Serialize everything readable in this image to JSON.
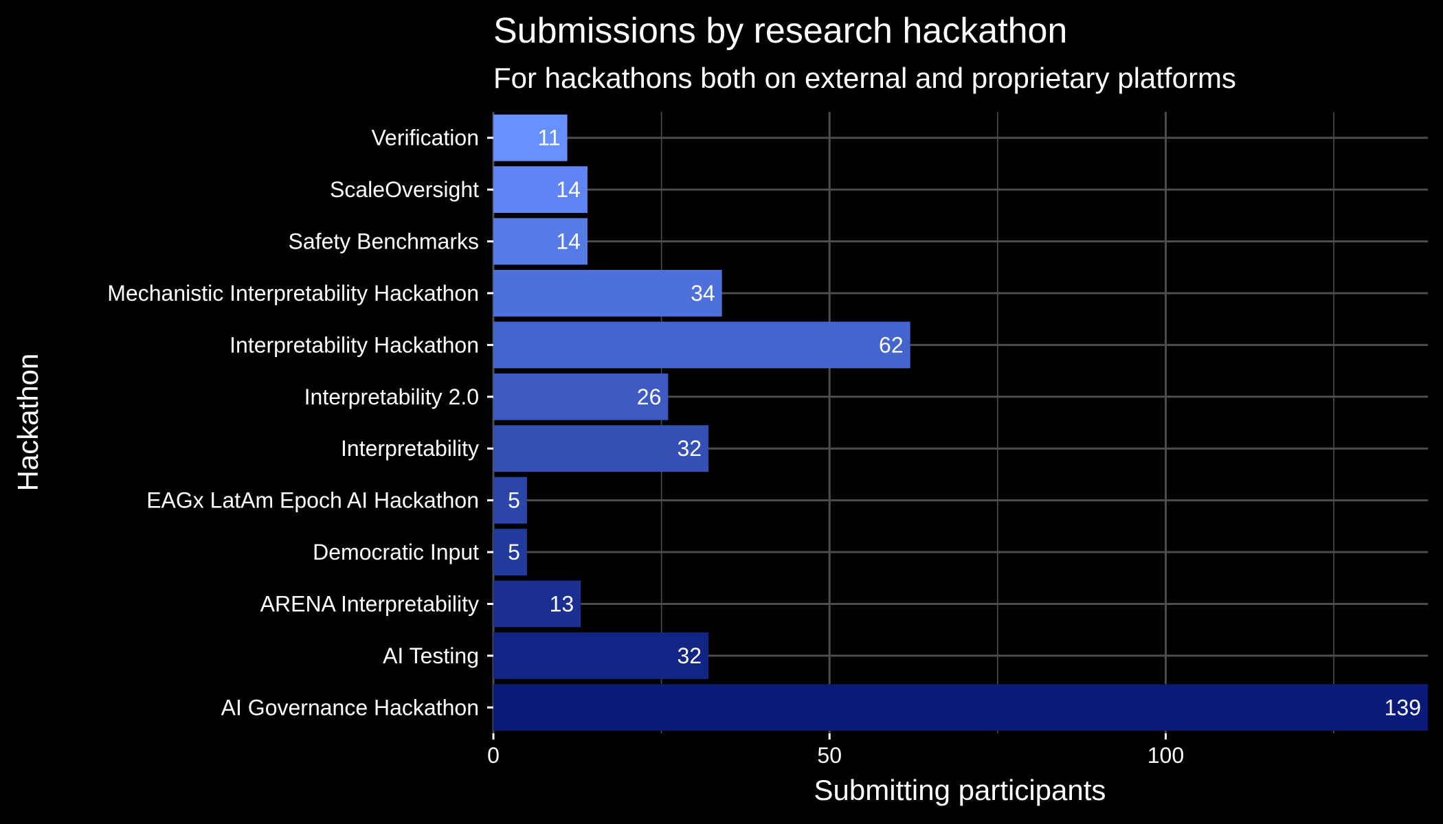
{
  "chart_data": {
    "type": "bar",
    "orientation": "horizontal",
    "title": "Submissions by research hackathon",
    "subtitle": "For hackathons both on external and proprietary platforms",
    "xlabel": "Submitting participants",
    "ylabel": "Hackathon",
    "categories": [
      "Verification",
      "ScaleOversight",
      "Safety Benchmarks",
      "Mechanistic Interpretability Hackathon",
      "Interpretability Hackathon",
      "Interpretability 2.0",
      "Interpretability",
      "EAGx LatAm Epoch AI Hackathon",
      "Democratic Input",
      "ARENA Interpretability",
      "AI Testing",
      "AI Governance Hackathon"
    ],
    "values": [
      11,
      14,
      14,
      34,
      62,
      26,
      32,
      5,
      5,
      13,
      32,
      139
    ],
    "data_labels": [
      "11",
      "14",
      "14",
      "34",
      "62",
      "26",
      "32",
      "5",
      "5",
      "13",
      "32",
      "139"
    ],
    "xlim": [
      0,
      139
    ],
    "xticks": [
      0,
      50,
      100
    ],
    "xtick_labels": [
      "0",
      "50",
      "100"
    ],
    "grid": true,
    "legend": "none",
    "colors": {
      "background": "#000000",
      "grid": "#4d4d4d",
      "text": "#ffffff",
      "bar_gradient_low": "#0a1a78",
      "bar_gradient_high": "#6690ff"
    }
  }
}
